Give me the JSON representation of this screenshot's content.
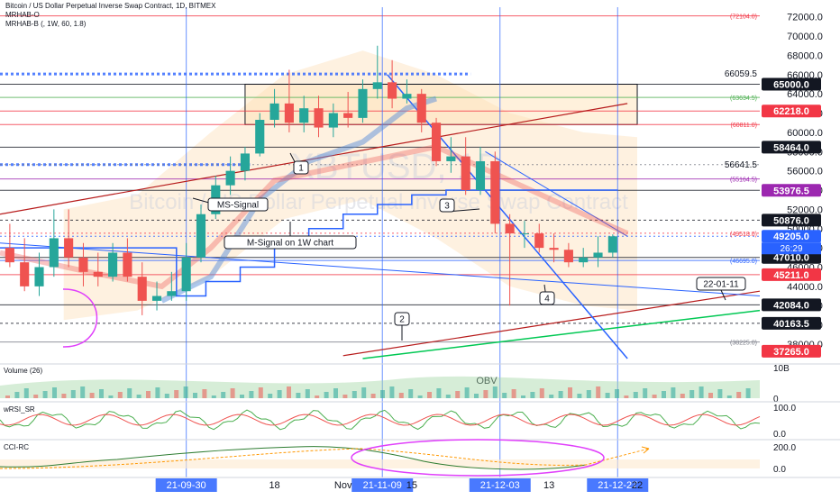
{
  "header": {
    "title": "Bitcoin / US Dollar Perpetual Inverse Swap Contract, 1D, BITMEX",
    "indicator_1": "MRHAB-O",
    "indicator_2": "MRHAB-B (, 1W, 60, 1.8)"
  },
  "watermark": {
    "symbol": "XBTUSD, 1D",
    "description": "Bitcoin / US Dollar Perpetual Inverse Swap Contract"
  },
  "chart_data": {
    "type": "candlestick",
    "x": [
      "21-08-25",
      "21-08-28",
      "21-08-31",
      "21-09-03",
      "21-09-06",
      "21-09-09",
      "21-09-12",
      "21-09-15",
      "21-09-18",
      "21-09-21",
      "21-09-24",
      "21-09-27",
      "21-09-30",
      "21-10-03",
      "21-10-06",
      "21-10-09",
      "21-10-12",
      "21-10-15",
      "21-10-18",
      "21-10-21",
      "21-10-24",
      "21-10-27",
      "21-10-30",
      "21-11-02",
      "21-11-05",
      "21-11-08",
      "21-11-11",
      "21-11-14",
      "21-11-17",
      "21-11-20",
      "21-11-23",
      "21-11-26",
      "21-11-29",
      "21-12-02",
      "21-12-05",
      "21-12-08",
      "21-12-11",
      "21-12-14",
      "21-12-17",
      "21-12-20",
      "21-12-23",
      "21-12-26"
    ],
    "open": [
      48000,
      46500,
      44000,
      46000,
      49000,
      47000,
      45500,
      45000,
      47500,
      45000,
      42500,
      43000,
      43500,
      47000,
      51500,
      54500,
      56000,
      57800,
      61300,
      63000,
      61000,
      62500,
      60500,
      62000,
      61500,
      64500,
      65200,
      63500,
      64000,
      61000,
      57000,
      57500,
      54000,
      57000,
      50500,
      49500,
      49500,
      48000,
      47800,
      46500,
      47000,
      47500
    ],
    "high": [
      50500,
      49000,
      47500,
      52000,
      52000,
      48500,
      47500,
      48500,
      49000,
      46500,
      44500,
      45500,
      48500,
      52500,
      55500,
      57500,
      58500,
      62000,
      64500,
      66500,
      63800,
      63800,
      63000,
      64200,
      65500,
      69000,
      67500,
      65500,
      64500,
      61500,
      59500,
      59500,
      58500,
      58000,
      51500,
      50800,
      50500,
      49500,
      48500,
      48000,
      49200,
      49400
    ],
    "low": [
      46000,
      43500,
      43000,
      45000,
      46000,
      44000,
      44000,
      44500,
      44500,
      41000,
      41500,
      42500,
      42500,
      46500,
      51000,
      53500,
      55000,
      57500,
      60500,
      60000,
      60000,
      59500,
      59500,
      60500,
      61000,
      63500,
      62500,
      63000,
      60000,
      56500,
      55800,
      53500,
      53500,
      49500,
      42000,
      48000,
      47500,
      46500,
      46000,
      46000,
      46000,
      47000
    ],
    "close": [
      46500,
      44000,
      46000,
      49000,
      47000,
      45500,
      45000,
      47500,
      45000,
      42500,
      43000,
      43500,
      47000,
      51500,
      54500,
      56000,
      57800,
      61300,
      63000,
      61000,
      62500,
      60500,
      62000,
      61500,
      64500,
      65200,
      63500,
      64000,
      61000,
      57000,
      57500,
      54000,
      57000,
      50500,
      49500,
      49500,
      48000,
      47800,
      46500,
      47000,
      47500,
      49200
    ],
    "ylim": [
      36500,
      73000
    ],
    "yticks": [
      38000,
      40000,
      42000,
      44000,
      46000,
      48000,
      50000,
      52000,
      54000,
      56000,
      58000,
      60000,
      62000,
      64000,
      66000,
      68000,
      70000,
      72000
    ],
    "ytick_labels": [
      "38000.0",
      "40000.0",
      "42000.0",
      "44000.0",
      "46000.0",
      "48000.0",
      "50000.0",
      "52000.0",
      "54000.0",
      "56000.0",
      "58000.0",
      "60000.0",
      "62000.0",
      "64000.0",
      "66000.0",
      "68000.0",
      "70000.0",
      "72000.0"
    ],
    "xaxis_labels": [
      {
        "x": "21-09-30",
        "text": "21-09-30",
        "highlight": true
      },
      {
        "x": "21-10-18",
        "text": "18",
        "highlight": false
      },
      {
        "x": "21-11-01",
        "text": "Nov",
        "highlight": false
      },
      {
        "x": "21-11-09",
        "text": "21-11-09",
        "highlight": true
      },
      {
        "x": "21-11-15",
        "text": "15",
        "highlight": false
      },
      {
        "x": "21-12-03",
        "text": "21-12-03",
        "highlight": true
      },
      {
        "x": "21-12-13",
        "text": "13",
        "highlight": false
      },
      {
        "x": "21-12-27",
        "text": "21-12-27",
        "highlight": true
      },
      {
        "x": "21-12-31",
        "text": "22",
        "highlight": false
      }
    ],
    "price_badges": [
      {
        "value": 65000.0,
        "text": "65000.0",
        "bg": "#131722",
        "fg": "#ffffff"
      },
      {
        "value": 62218.0,
        "text": "62218.0",
        "bg": "#f23645",
        "fg": "#ffffff"
      },
      {
        "value": 58464.0,
        "text": "58464.0",
        "bg": "#131722",
        "fg": "#ffffff"
      },
      {
        "value": 53976.5,
        "text": "53976.5",
        "bg": "#9c27b0",
        "fg": "#ffffff"
      },
      {
        "value": 50876.0,
        "text": "50876.0",
        "bg": "#131722",
        "fg": "#ffffff"
      },
      {
        "value": 49205.0,
        "text": "49205.0",
        "bg": "#2962ff",
        "fg": "#ffffff"
      },
      {
        "value": 47010.0,
        "text": "47010.0",
        "bg": "#131722",
        "fg": "#ffffff"
      },
      {
        "value": 45211.0,
        "text": "45211.0",
        "bg": "#f23645",
        "fg": "#ffffff"
      },
      {
        "value": 42084.0,
        "text": "42084.0",
        "bg": "#131722",
        "fg": "#ffffff"
      },
      {
        "value": 40163.5,
        "text": "40163.5",
        "bg": "#131722",
        "fg": "#ffffff"
      },
      {
        "value": 37265.0,
        "text": "37265.0",
        "bg": "#f23645",
        "fg": "#ffffff"
      }
    ],
    "countdown": "26:29",
    "level_labels": [
      {
        "value": 72104.0,
        "text": "(72104.0)",
        "color": "#f23645"
      },
      {
        "value": 66059.5,
        "text": "66059.5",
        "color": "#131722"
      },
      {
        "value": 63634.5,
        "text": "(63634.5)",
        "color": "#4caf50"
      },
      {
        "value": 60811.0,
        "text": "(60811.0)",
        "color": "#f23645"
      },
      {
        "value": 56641.5,
        "text": "56641.5",
        "color": "#131722"
      },
      {
        "value": 55164.5,
        "text": "(55164.5)",
        "color": "#9c27b0"
      },
      {
        "value": 49518.0,
        "text": "(49518.0)",
        "color": "#f23645"
      },
      {
        "value": 46695.0,
        "text": "(46695.0)",
        "color": "#2962ff"
      },
      {
        "value": 38225.0,
        "text": "(38225.0)",
        "color": "#787b86"
      }
    ],
    "annotations": [
      {
        "text": "1"
      },
      {
        "text": "MS-Signal"
      },
      {
        "text": "M-Signal on 1W chart"
      },
      {
        "text": "2"
      },
      {
        "text": "3"
      },
      {
        "text": "4"
      },
      {
        "text": "22-01-11"
      }
    ],
    "panels": [
      {
        "name": "Volume (26)",
        "label": "OBV",
        "ticks": [
          "10B",
          "0"
        ]
      },
      {
        "name": "wRSI_SR",
        "ticks": [
          "100.0",
          "0.0"
        ]
      },
      {
        "name": "CCI-RC",
        "ticks": [
          "200.0",
          "0.0"
        ]
      }
    ],
    "grid": false,
    "colors": {
      "up": "#26a69a",
      "down": "#ef5350",
      "ms_signal": "#2962ff",
      "trend_red": "#b71c1c",
      "trend_green": "#00c853"
    }
  }
}
